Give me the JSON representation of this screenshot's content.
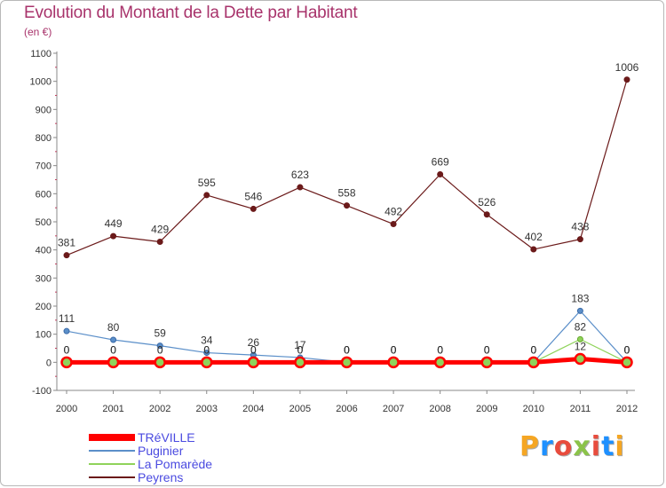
{
  "title": "Evolution du Montant de la Dette par Habitant",
  "subtitle": "(en €)",
  "logo": {
    "letters": [
      "P",
      "r",
      "o",
      "x",
      "i",
      "t",
      "i"
    ],
    "colors": [
      "#f5a623",
      "#1e90ff",
      "#e84c3d",
      "#8bc34a",
      "#e84c3d",
      "#1e90ff",
      "#f5a623"
    ]
  },
  "chart_data": {
    "type": "line",
    "title": "Evolution du Montant de la Dette par Habitant",
    "ylabel": "(en €)",
    "xlabel": "",
    "categories": [
      "2000",
      "2001",
      "2002",
      "2003",
      "2004",
      "2005",
      "2006",
      "2007",
      "2008",
      "2009",
      "2010",
      "2011",
      "2012"
    ],
    "ylim": [
      -100,
      1100
    ],
    "yticks": [
      "-100",
      "0",
      "100",
      "200",
      "300",
      "400",
      "500",
      "600",
      "700",
      "800",
      "900",
      "1000",
      "1100"
    ],
    "series": [
      {
        "name": "Peyrens",
        "color": "#6b1a1a",
        "values": [
          381,
          449,
          429,
          595,
          546,
          623,
          558,
          492,
          669,
          526,
          402,
          438,
          1006
        ],
        "labels": [
          "381",
          "449",
          "429",
          "595",
          "546",
          "623",
          "558",
          "492",
          "669",
          "526",
          "402",
          "438",
          "1006"
        ]
      },
      {
        "name": "Puginier",
        "color": "#5b8fc9",
        "values": [
          111,
          80,
          59,
          34,
          26,
          17,
          0,
          0,
          0,
          0,
          0,
          183,
          0
        ],
        "labels": [
          "111",
          "80",
          "59",
          "34",
          "26",
          "17",
          "0",
          "0",
          "0",
          "0",
          "0",
          "183",
          "0"
        ]
      },
      {
        "name": "La Pomarède",
        "color": "#8fd35a",
        "values": [
          0,
          0,
          0,
          0,
          0,
          0,
          0,
          0,
          0,
          0,
          0,
          82,
          0
        ],
        "labels": [
          "0",
          "0",
          "0",
          "0",
          "0",
          "0",
          "0",
          "0",
          "0",
          "0",
          "0",
          "82",
          "0"
        ]
      },
      {
        "name": "TRéVILLE",
        "color": "#ff0000",
        "values": [
          0,
          0,
          0,
          0,
          0,
          0,
          0,
          0,
          0,
          0,
          0,
          12,
          0
        ],
        "labels": [
          "0",
          "0",
          "0",
          "0",
          "0",
          "0",
          "0",
          "0",
          "0",
          "0",
          "0",
          "12",
          "0"
        ]
      }
    ],
    "legend": [
      "TRéVILLE",
      "Puginier",
      "La Pomarède",
      "Peyrens"
    ],
    "legend_position": "bottom-left",
    "grid": false
  }
}
